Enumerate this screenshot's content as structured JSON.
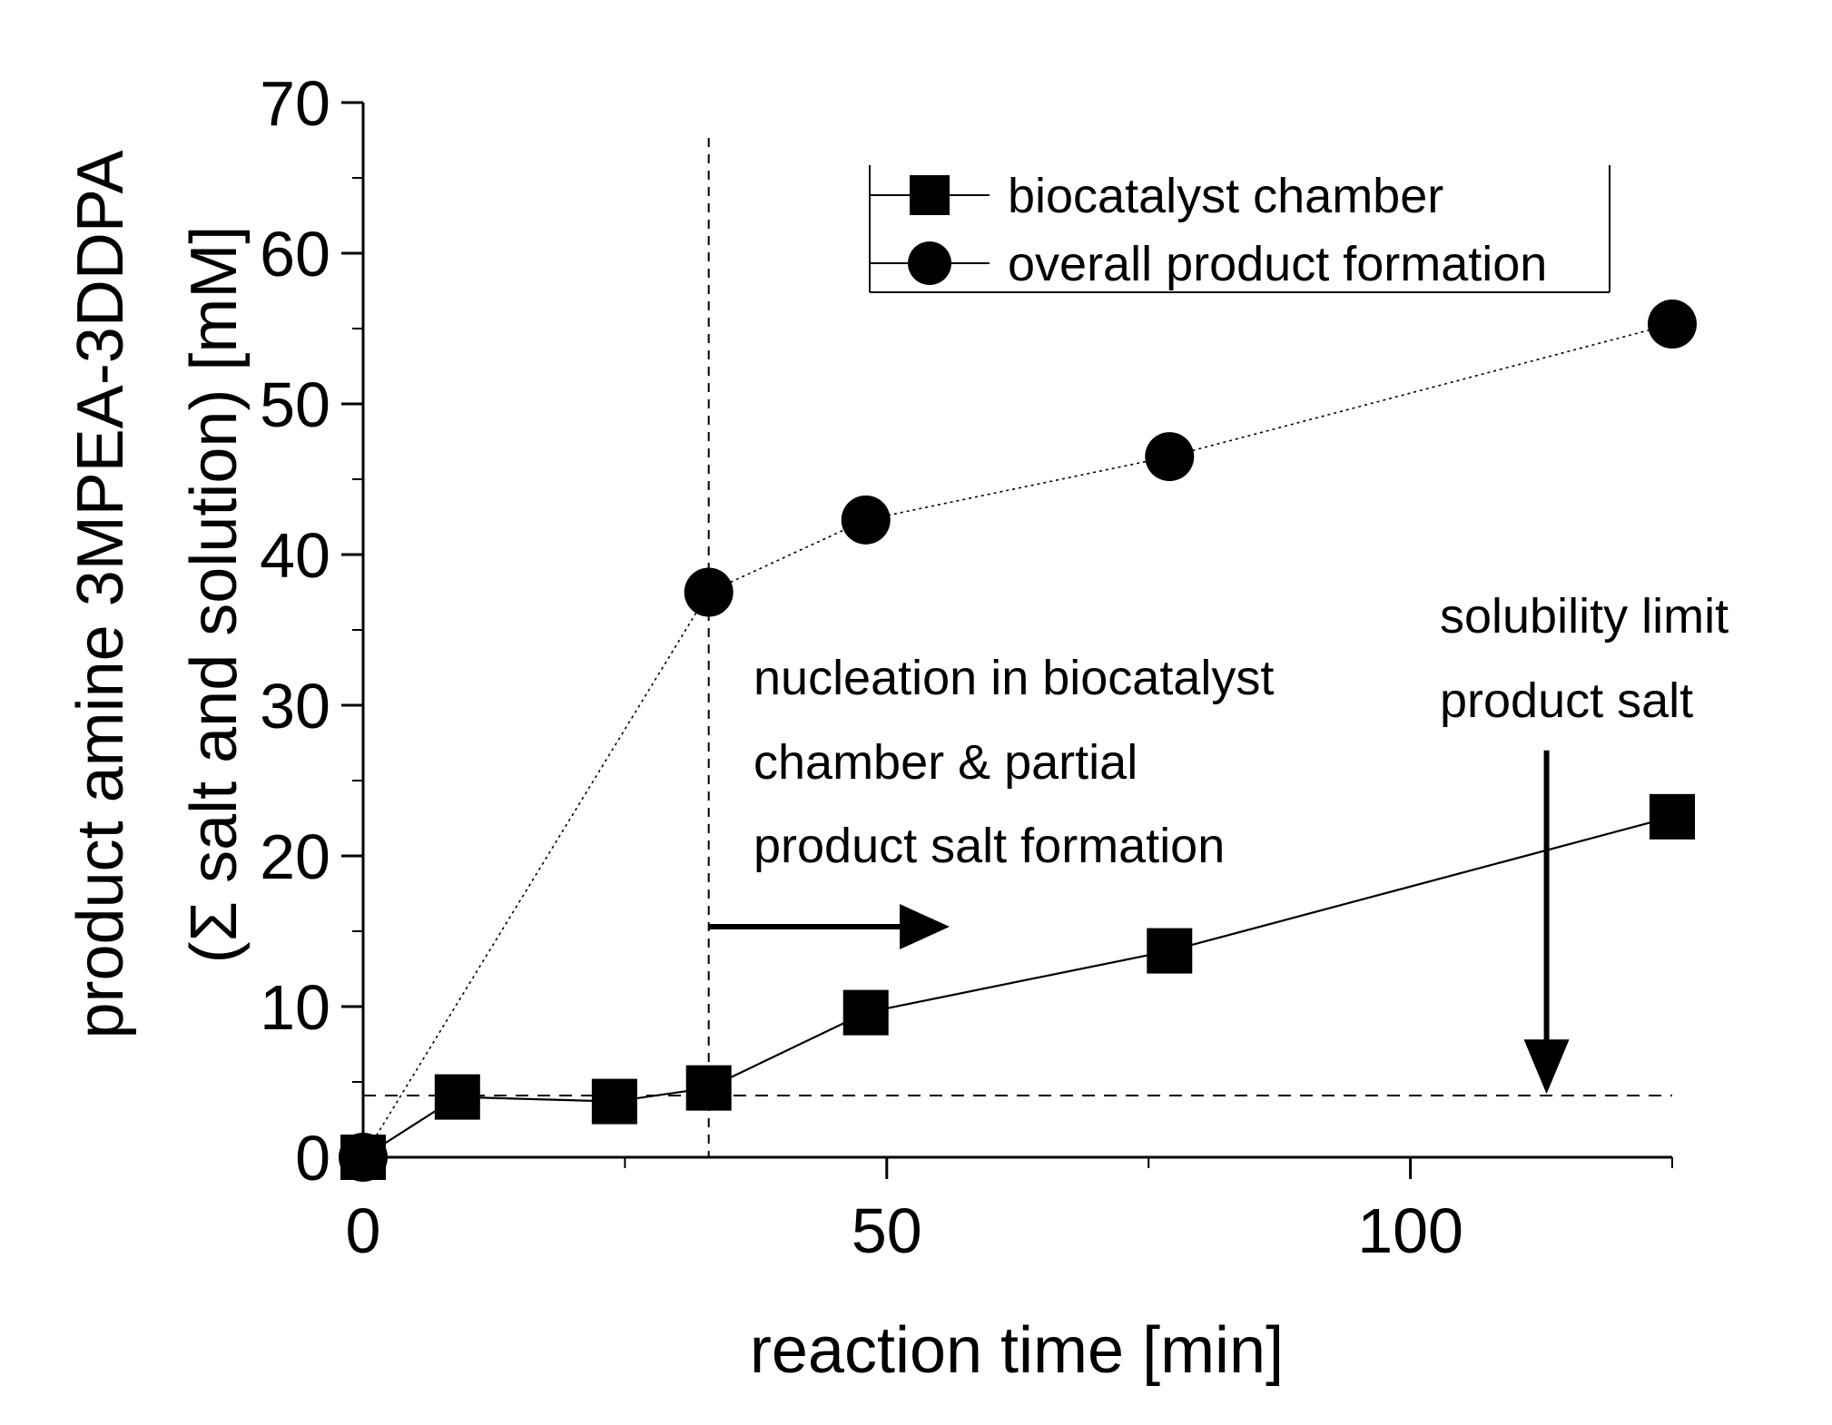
{
  "chart_data": {
    "type": "line",
    "xlabel": "reaction time [min]",
    "ylabel_line1": "product amine 3MPEA-3DDPA",
    "ylabel_line2": "(Σ salt and solution) [mM]",
    "xlim": [
      0,
      125
    ],
    "ylim": [
      0,
      70
    ],
    "x_ticks": [
      0,
      50,
      100
    ],
    "x_minor_ticks": [
      25,
      75,
      125
    ],
    "y_ticks": [
      0,
      10,
      20,
      30,
      40,
      50,
      60,
      70
    ],
    "grid": false,
    "legend_position": "top-right",
    "series": [
      {
        "name": "biocatalyst chamber",
        "marker": "square",
        "line": "solid",
        "x": [
          0,
          9,
          24,
          33,
          48,
          77,
          125
        ],
        "y": [
          0,
          4.0,
          3.7,
          4.6,
          9.6,
          13.7,
          22.6
        ]
      },
      {
        "name": "overall product formation",
        "marker": "circle",
        "line": "dotted",
        "x": [
          0,
          33,
          48,
          77,
          125
        ],
        "y": [
          0,
          37.5,
          42.3,
          46.5,
          55.3
        ]
      }
    ],
    "reference_lines": [
      {
        "orientation": "vertical",
        "x": 33
      },
      {
        "orientation": "horizontal",
        "y": 4.1
      }
    ],
    "annotations": [
      {
        "lines": [
          "nucleation in biocatalyst",
          "chamber & partial",
          "product salt formation"
        ],
        "arrow": "right",
        "arrow_from_x": 33,
        "arrow_to_x": 56,
        "arrow_y": 15.3
      },
      {
        "lines": [
          "solubility limit",
          "product salt"
        ],
        "arrow": "down",
        "arrow_x": 113,
        "arrow_from_y": 27,
        "arrow_to_y": 4.2
      }
    ],
    "colors": {
      "line": "#000000",
      "marker": "#000000",
      "background": "#ffffff"
    }
  }
}
